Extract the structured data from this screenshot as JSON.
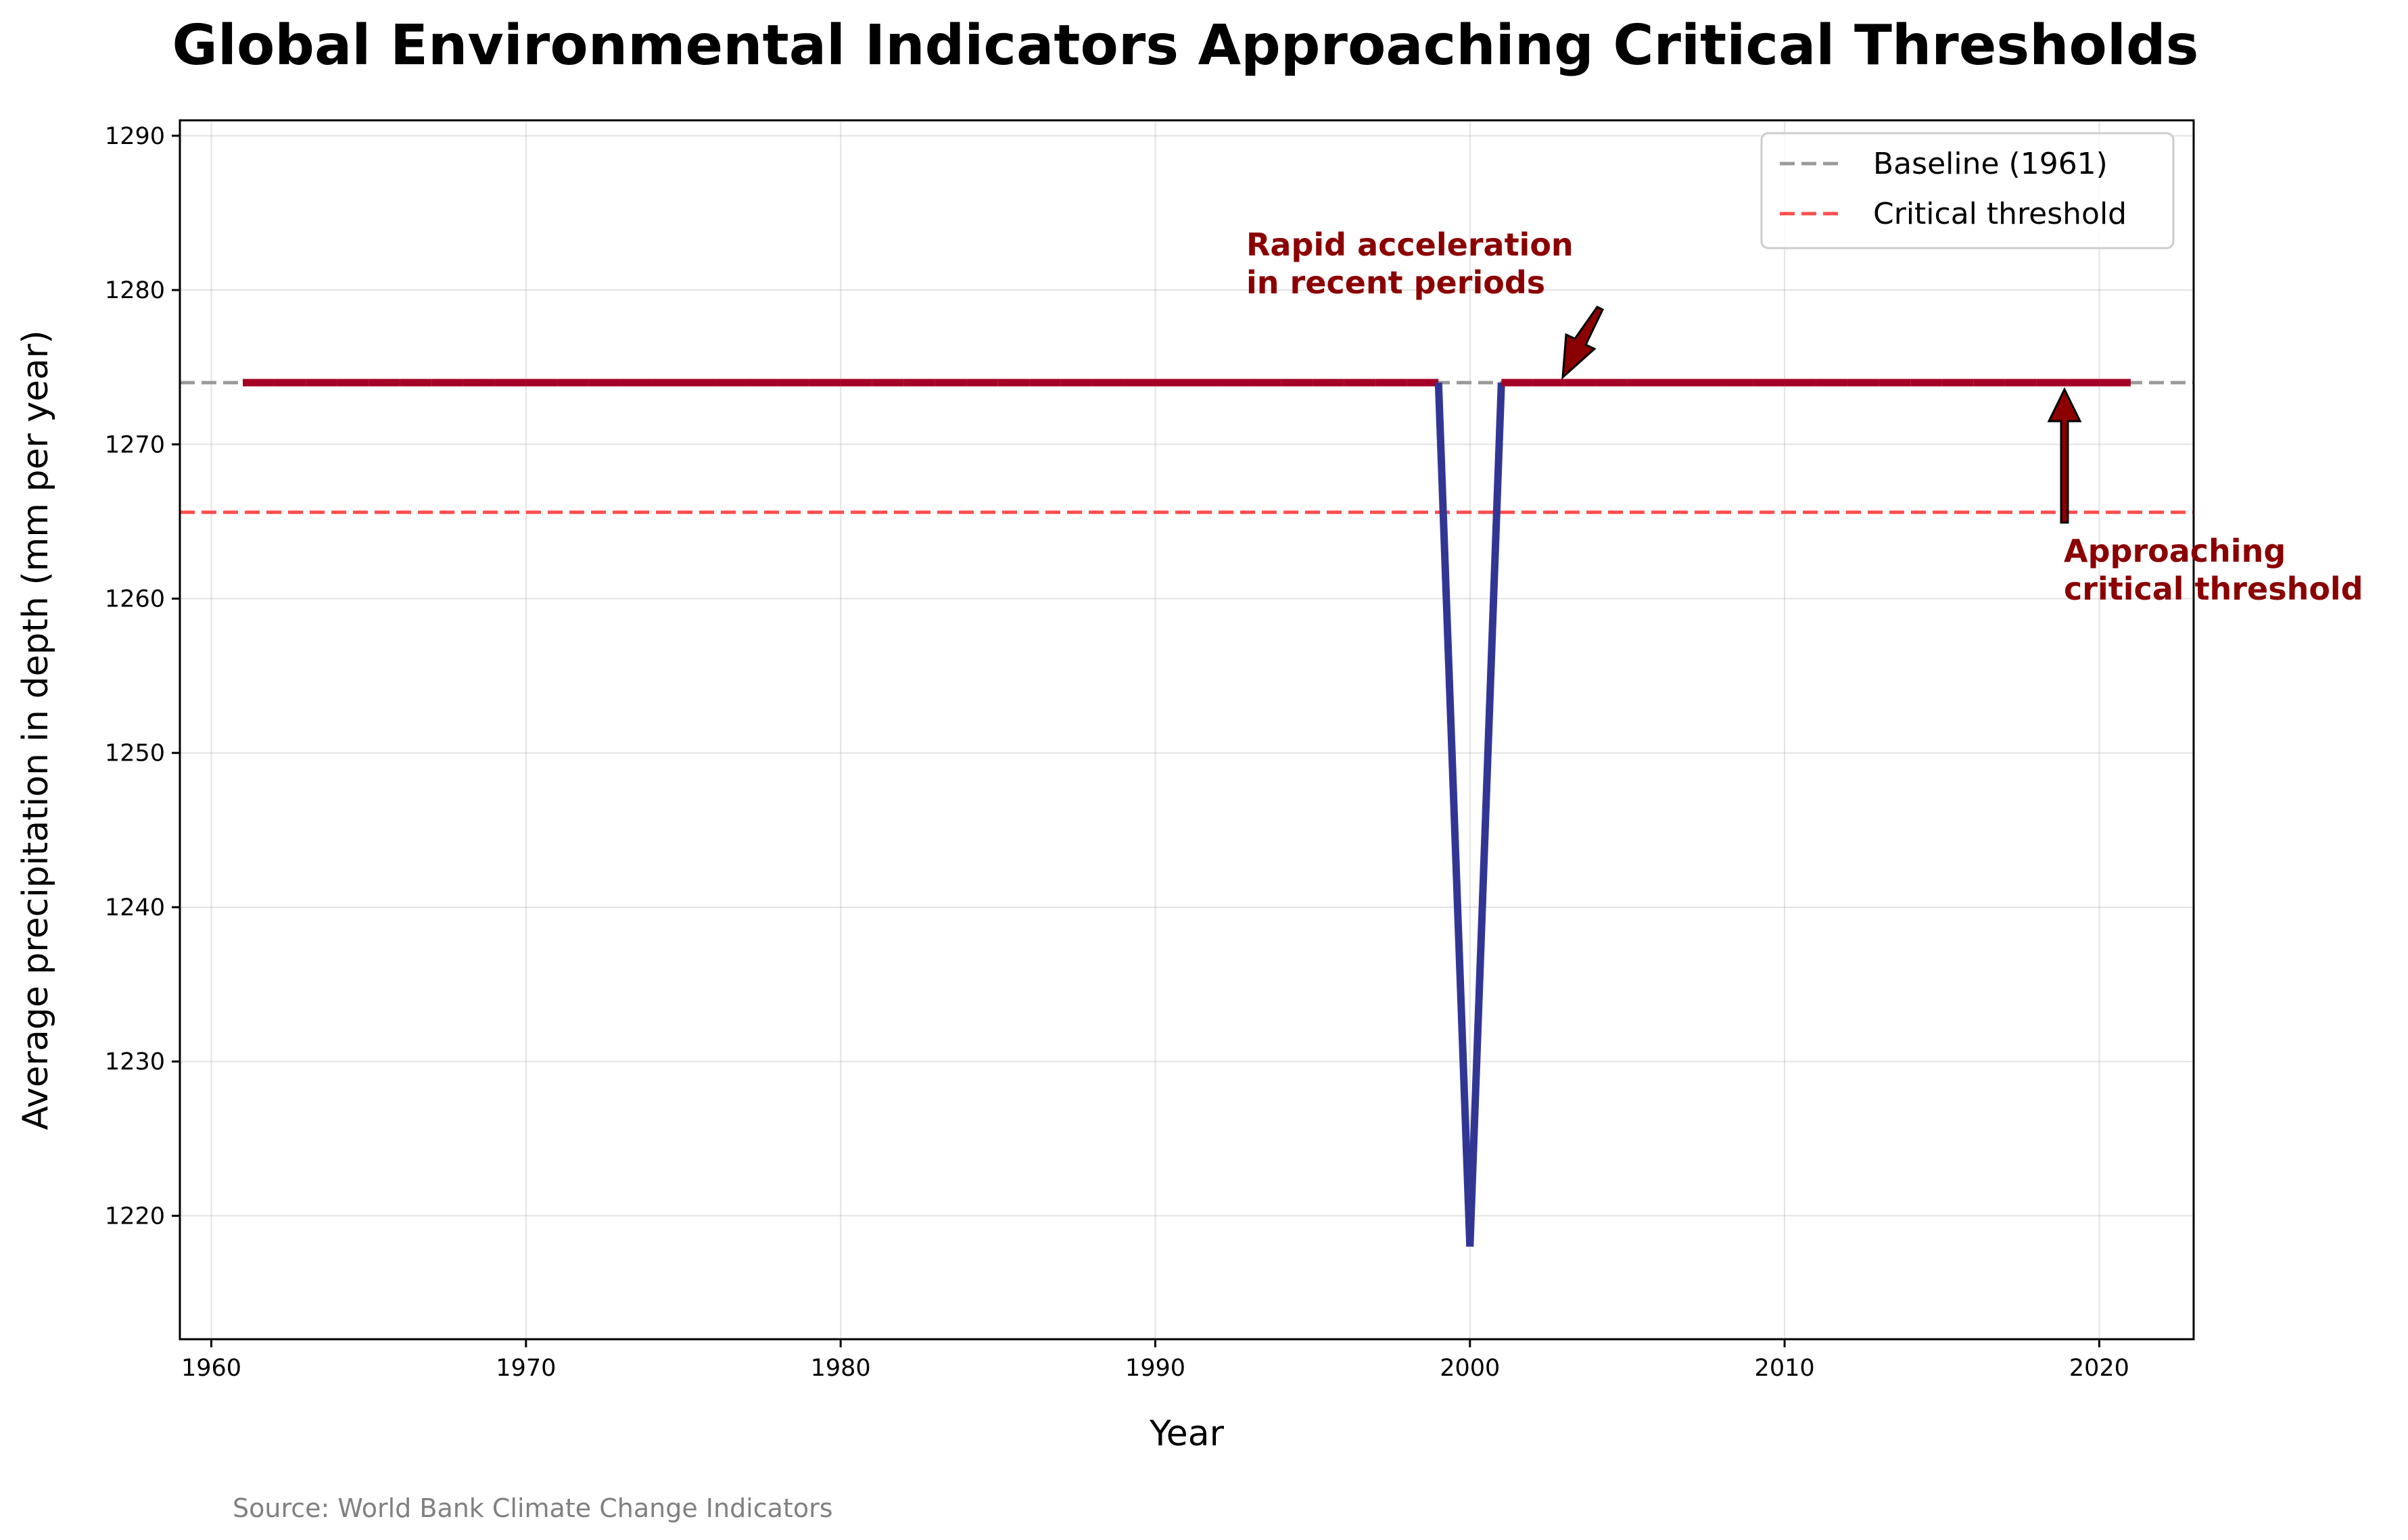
{
  "chart_data": {
    "type": "line",
    "title": "Global Environmental Indicators Approaching Critical Thresholds",
    "xlabel": "Year",
    "ylabel": "Average precipitation in depth (mm per year)",
    "xlim": [
      1959,
      2023
    ],
    "ylim": [
      1212,
      1291
    ],
    "xticks": [
      1960,
      1970,
      1980,
      1990,
      2000,
      2010,
      2020
    ],
    "yticks": [
      1220,
      1230,
      1240,
      1250,
      1260,
      1270,
      1280,
      1290
    ],
    "grid": true,
    "legend_position": "top-right",
    "series": [
      {
        "x": [
          1961,
          1962,
          1963,
          1964,
          1965,
          1966,
          1967,
          1968,
          1969,
          1970,
          1971,
          1972,
          1973,
          1974,
          1975,
          1976,
          1977,
          1978,
          1979,
          1980,
          1981,
          1982,
          1983,
          1984,
          1985,
          1986,
          1987,
          1988,
          1989,
          1990,
          1991,
          1992,
          1993,
          1994,
          1995,
          1996,
          1997,
          1998,
          1999,
          2000,
          2001,
          2002,
          2003,
          2004,
          2005,
          2006,
          2007,
          2008,
          2009,
          2010,
          2011,
          2012,
          2013,
          2014,
          2015,
          2016,
          2017,
          2018,
          2019,
          2020,
          2021
        ],
        "values": [
          1274,
          1274,
          1274,
          1274,
          1274,
          1274,
          1274,
          1274,
          1274,
          1274,
          1274,
          1274,
          1274,
          1274,
          1274,
          1274,
          1274,
          1274,
          1274,
          1274,
          1274,
          1274,
          1274,
          1274,
          1274,
          1274,
          1274,
          1274,
          1274,
          1274,
          1274,
          1274,
          1274,
          1274,
          1274,
          1274,
          1274,
          1274,
          1274,
          1218,
          1274,
          1274,
          1274,
          1274,
          1274,
          1274,
          1274,
          1274,
          1274,
          1274,
          1274,
          1274,
          1274,
          1274,
          1274,
          1274,
          1274,
          1274,
          1274,
          1274,
          1274
        ]
      }
    ],
    "reference_lines": [
      {
        "name": "Baseline (1961)",
        "y": 1274,
        "color": "#999999",
        "style": "dashed"
      },
      {
        "name": "Critical threshold",
        "y": 1265.6,
        "color": "#ff4d4d",
        "style": "dashed"
      }
    ],
    "legend": [
      "Baseline (1961)",
      "Critical threshold"
    ],
    "annotations": [
      {
        "lines": [
          "Rapid acceleration",
          "in recent periods"
        ],
        "point": [
          2003,
          1274
        ],
        "text_at": [
          1993,
          1280
        ]
      },
      {
        "lines": [
          "Approaching",
          "critical threshold"
        ],
        "point": [
          2019,
          1274
        ],
        "text_at": [
          2019,
          1260
        ]
      }
    ],
    "colors": {
      "high": "#a50026",
      "low": "#313695",
      "annotation": "#8b0000"
    }
  },
  "footer": {
    "source": "Source: World Bank Climate Change Indicators"
  }
}
